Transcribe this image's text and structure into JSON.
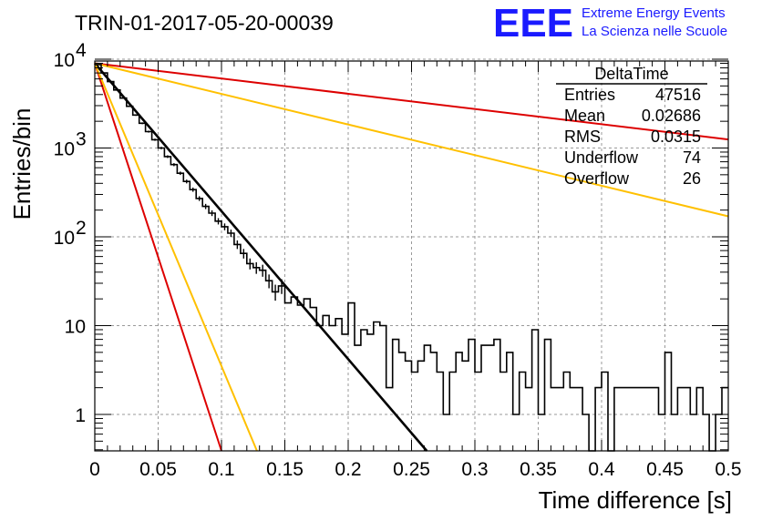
{
  "title": "TRIN-01-2017-05-20-00039",
  "logo": {
    "mark": "EEE",
    "line1": "Extreme Energy Events",
    "line2": "La Scienza nelle Scuole"
  },
  "stats": {
    "name": "DeltaTime",
    "rows": [
      {
        "label": "Entries",
        "value": "47516"
      },
      {
        "label": "Mean",
        "value": "0.02686"
      },
      {
        "label": "RMS",
        "value": "0.0315"
      },
      {
        "label": "Underflow",
        "value": "74"
      },
      {
        "label": "Overflow",
        "value": "26"
      }
    ]
  },
  "chart_data": {
    "type": "line",
    "title": "TRIN-01-2017-05-20-00039",
    "xlabel": "Time difference [s]",
    "ylabel": "Entries/bin",
    "xlim": [
      0,
      0.5
    ],
    "ylim": [
      0.38,
      16000
    ],
    "yscale": "log",
    "grid": true,
    "x_ticks": [
      "0",
      "0.05",
      "0.1",
      "0.15",
      "0.2",
      "0.25",
      "0.3",
      "0.35",
      "0.4",
      "0.45",
      "0.5"
    ],
    "y_ticks": [
      {
        "value": 1,
        "label": "1"
      },
      {
        "value": 10,
        "label": "10"
      },
      {
        "value": 100,
        "label": "10",
        "exp": "2"
      },
      {
        "value": 1000,
        "label": "10",
        "exp": "3"
      },
      {
        "value": 10000,
        "label": "10",
        "exp": "4"
      }
    ],
    "colors": {
      "histogram": "#000000",
      "fit": "#000000",
      "red": "#dd0000",
      "yellow": "#ffc000"
    },
    "histogram": {
      "name": "DeltaTime",
      "bin_width": 0.005,
      "values": [
        8700,
        7000,
        5600,
        4500,
        3650,
        2950,
        2350,
        1900,
        1530,
        1240,
        1000,
        800,
        650,
        520,
        420,
        340,
        270,
        220,
        185,
        150,
        130,
        110,
        82,
        65,
        50,
        45,
        42,
        32,
        24,
        28,
        18,
        21,
        17,
        20,
        16,
        10,
        13,
        10,
        12,
        8,
        18,
        6,
        9,
        8,
        11,
        10,
        2,
        7,
        5,
        4,
        3,
        4,
        6,
        5,
        3,
        1,
        3,
        5,
        4,
        7,
        3,
        6,
        6,
        7,
        3,
        5,
        1,
        3,
        2,
        9,
        1,
        7,
        2,
        2,
        3,
        2,
        2,
        1,
        0,
        2,
        3,
        0,
        2,
        2,
        2,
        2,
        2,
        2,
        2,
        1,
        5,
        1,
        2,
        2,
        1,
        2,
        1,
        0,
        1,
        2
      ]
    },
    "series": [
      {
        "color": "black",
        "x": [
          0,
          0.262
        ],
        "y": [
          9000,
          0.38
        ]
      },
      {
        "color": "red",
        "x": [
          0,
          0.5
        ],
        "y": [
          9000,
          1250
        ]
      },
      {
        "color": "yellow",
        "x": [
          0,
          0.5
        ],
        "y": [
          9000,
          170
        ]
      },
      {
        "color": "red",
        "x": [
          0,
          0.1
        ],
        "y": [
          9000,
          0.38
        ]
      },
      {
        "color": "yellow",
        "x": [
          0,
          0.128
        ],
        "y": [
          9000,
          0.38
        ]
      }
    ]
  }
}
